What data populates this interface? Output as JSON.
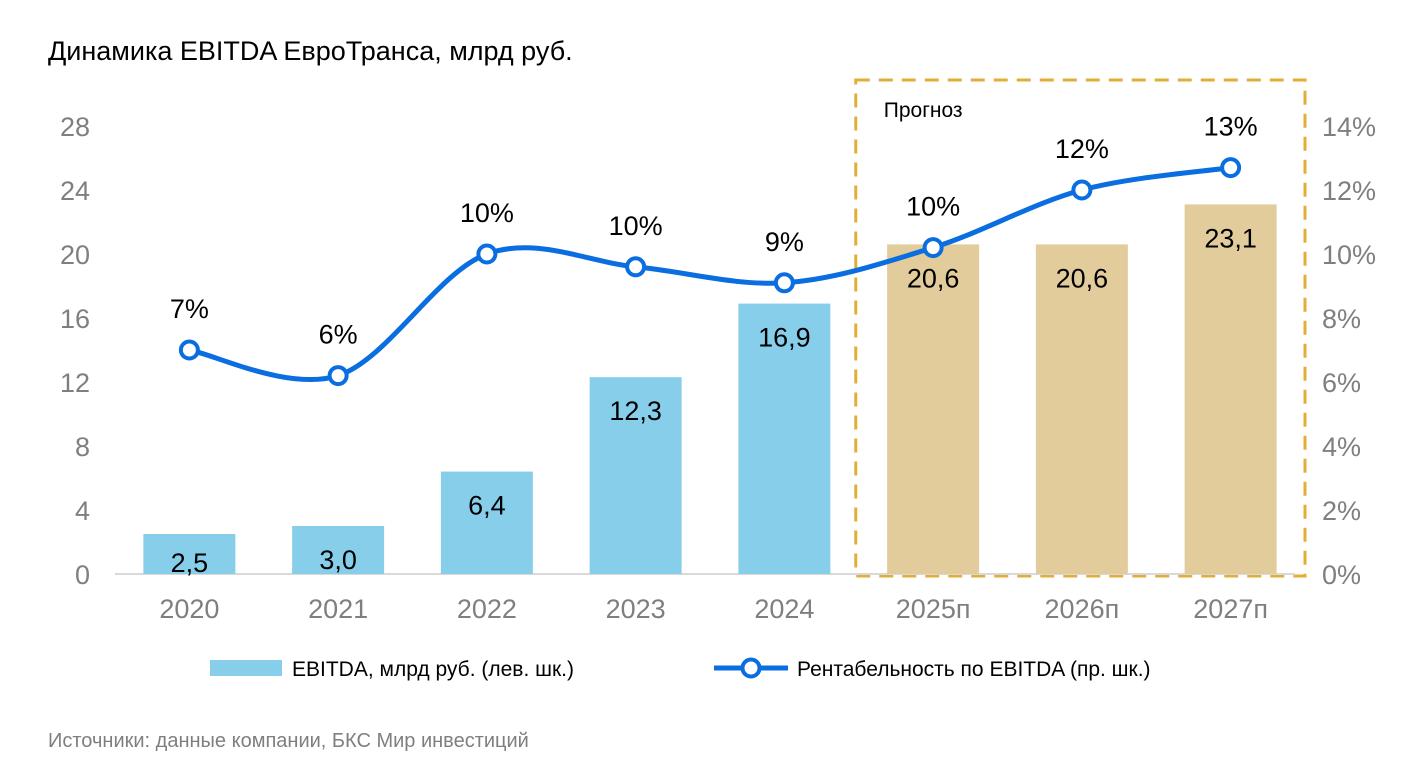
{
  "title": "Динамика EBITDA ЕвроТранса, млрд руб.",
  "source": "Источники: данные компании, БКС Мир инвестиций",
  "forecast_label": "Прогноз",
  "colors": {
    "bar_actual": "#87CEEB",
    "bar_forecast": "#E2CC9C",
    "line": "#0A6EE0",
    "forecast_box": "#E3AE37",
    "axis_text": "#7F7F7F"
  },
  "chart_data": {
    "type": "bar",
    "categories": [
      "2020",
      "2021",
      "2022",
      "2023",
      "2024",
      "2025п",
      "2026п",
      "2027п"
    ],
    "series": [
      {
        "name": "EBITDA, млрд руб. (лев. шк.)",
        "type": "bar",
        "axis": "left",
        "values": [
          2.5,
          3.0,
          6.4,
          12.3,
          16.9,
          20.6,
          20.6,
          23.1
        ],
        "labels": [
          "2,5",
          "3,0",
          "6,4",
          "12,3",
          "16,9",
          "20,6",
          "20,6",
          "23,1"
        ]
      },
      {
        "name": "Рентабельность по EBITDA (пр. шк.)",
        "type": "line",
        "axis": "right",
        "values": [
          7,
          6.2,
          10,
          9.6,
          9.1,
          10.2,
          12,
          12.7
        ],
        "labels": [
          "7%",
          "6%",
          "10%",
          "10%",
          "9%",
          "10%",
          "12%",
          "13%"
        ]
      }
    ],
    "forecast_categories": [
      "2025п",
      "2026п",
      "2027п"
    ],
    "y_left": {
      "ylim": [
        0,
        28
      ],
      "ticks": [
        "0",
        "4",
        "8",
        "12",
        "16",
        "20",
        "24",
        "28"
      ]
    },
    "y_right": {
      "ylim": [
        0,
        14
      ],
      "ticks": [
        "0%",
        "2%",
        "4%",
        "6%",
        "8%",
        "10%",
        "12%",
        "14%"
      ]
    },
    "grid": false,
    "legend_position": "bottom"
  }
}
